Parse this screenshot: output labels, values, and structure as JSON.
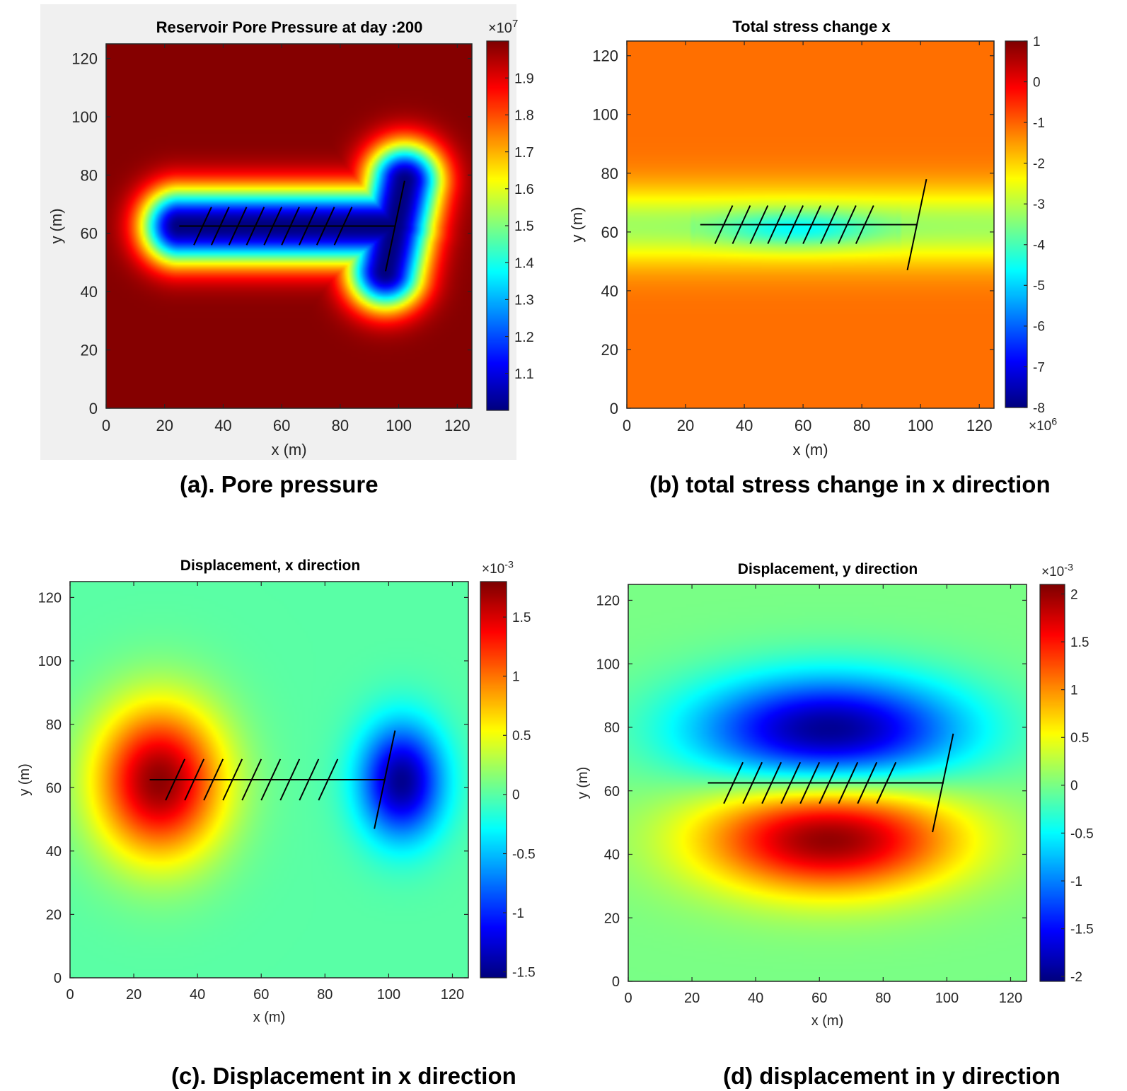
{
  "chart_data": [
    {
      "type": "heatmap",
      "field": "pore",
      "title": "Reservoir Pore Pressure at day :200",
      "xlabel": "x (m)",
      "ylabel": "y (m)",
      "xlim": [
        0,
        125
      ],
      "ylim": [
        0,
        125
      ],
      "xticks": [
        "0",
        "20",
        "40",
        "60",
        "80",
        "100",
        "120"
      ],
      "yticks": [
        "0",
        "20",
        "40",
        "60",
        "80",
        "100",
        "120"
      ],
      "colorbar": {
        "range": [
          1.0,
          2.0
        ],
        "ticks": [
          "1.1",
          "1.2",
          "1.3",
          "1.4",
          "1.5",
          "1.6",
          "1.7",
          "1.8",
          "1.9"
        ],
        "exponent_label": "×10",
        "exponent": "7",
        "exponent_position": "top"
      },
      "caption": "(a). Pore pressure",
      "background": "#f0f0f0"
    },
    {
      "type": "heatmap",
      "field": "stress",
      "title": "Total stress change x",
      "xlabel": "x (m)",
      "ylabel": "y (m)",
      "xlim": [
        0,
        125
      ],
      "ylim": [
        0,
        125
      ],
      "xticks": [
        "0",
        "20",
        "40",
        "60",
        "80",
        "100",
        "120"
      ],
      "yticks": [
        "0",
        "20",
        "40",
        "60",
        "80",
        "100",
        "120"
      ],
      "colorbar": {
        "range": [
          -8,
          1
        ],
        "ticks": [
          "1",
          "0",
          "-1",
          "-2",
          "-3",
          "-4",
          "-5",
          "-6",
          "-7",
          "-8"
        ],
        "exponent_label": "×10",
        "exponent": "6",
        "exponent_position": "bottom"
      },
      "caption": "(b)  total stress change in x direction",
      "background": "#ffffff"
    },
    {
      "type": "heatmap",
      "field": "dispx",
      "title": "Displacement, x direction",
      "xlabel": "x (m)",
      "ylabel": "y (m)",
      "xlim": [
        0,
        125
      ],
      "ylim": [
        0,
        125
      ],
      "xticks": [
        "0",
        "20",
        "40",
        "60",
        "80",
        "100",
        "120"
      ],
      "yticks": [
        "0",
        "20",
        "40",
        "60",
        "80",
        "100",
        "120"
      ],
      "colorbar": {
        "range": [
          -1.55,
          1.8
        ],
        "ticks": [
          "1.5",
          "1",
          "0.5",
          "0",
          "-0.5",
          "-1",
          "-1.5"
        ],
        "exponent_label": "×10",
        "exponent": "-3",
        "exponent_position": "top"
      },
      "caption": "(c). Displacement in x direction",
      "background": "#ffffff"
    },
    {
      "type": "heatmap",
      "field": "dispy",
      "title": "Displacement, y direction",
      "xlabel": "x (m)",
      "ylabel": "y (m)",
      "xlim": [
        0,
        125
      ],
      "ylim": [
        0,
        125
      ],
      "xticks": [
        "0",
        "20",
        "40",
        "60",
        "80",
        "100",
        "120"
      ],
      "yticks": [
        "0",
        "20",
        "40",
        "60",
        "80",
        "100",
        "120"
      ],
      "colorbar": {
        "range": [
          -2.05,
          2.1
        ],
        "ticks": [
          "2",
          "1.5",
          "1",
          "0.5",
          "0",
          "-0.5",
          "-1",
          "-1.5",
          "-2"
        ],
        "exponent_label": "×10",
        "exponent": "-3",
        "exponent_position": "top"
      },
      "caption": "(d)  displacement in y direction",
      "background": "#ffffff"
    }
  ],
  "wells": {
    "main": [
      [
        25,
        62.5
      ],
      [
        99,
        62.5
      ]
    ],
    "fracture_offset_x": 3.0,
    "fracture_half_height": 6.5,
    "fracture_centers_x": [
      33,
      39,
      45,
      51,
      57,
      63,
      69,
      75,
      81
    ],
    "transverse": [
      [
        95.5,
        47
      ],
      [
        102,
        78
      ]
    ]
  }
}
